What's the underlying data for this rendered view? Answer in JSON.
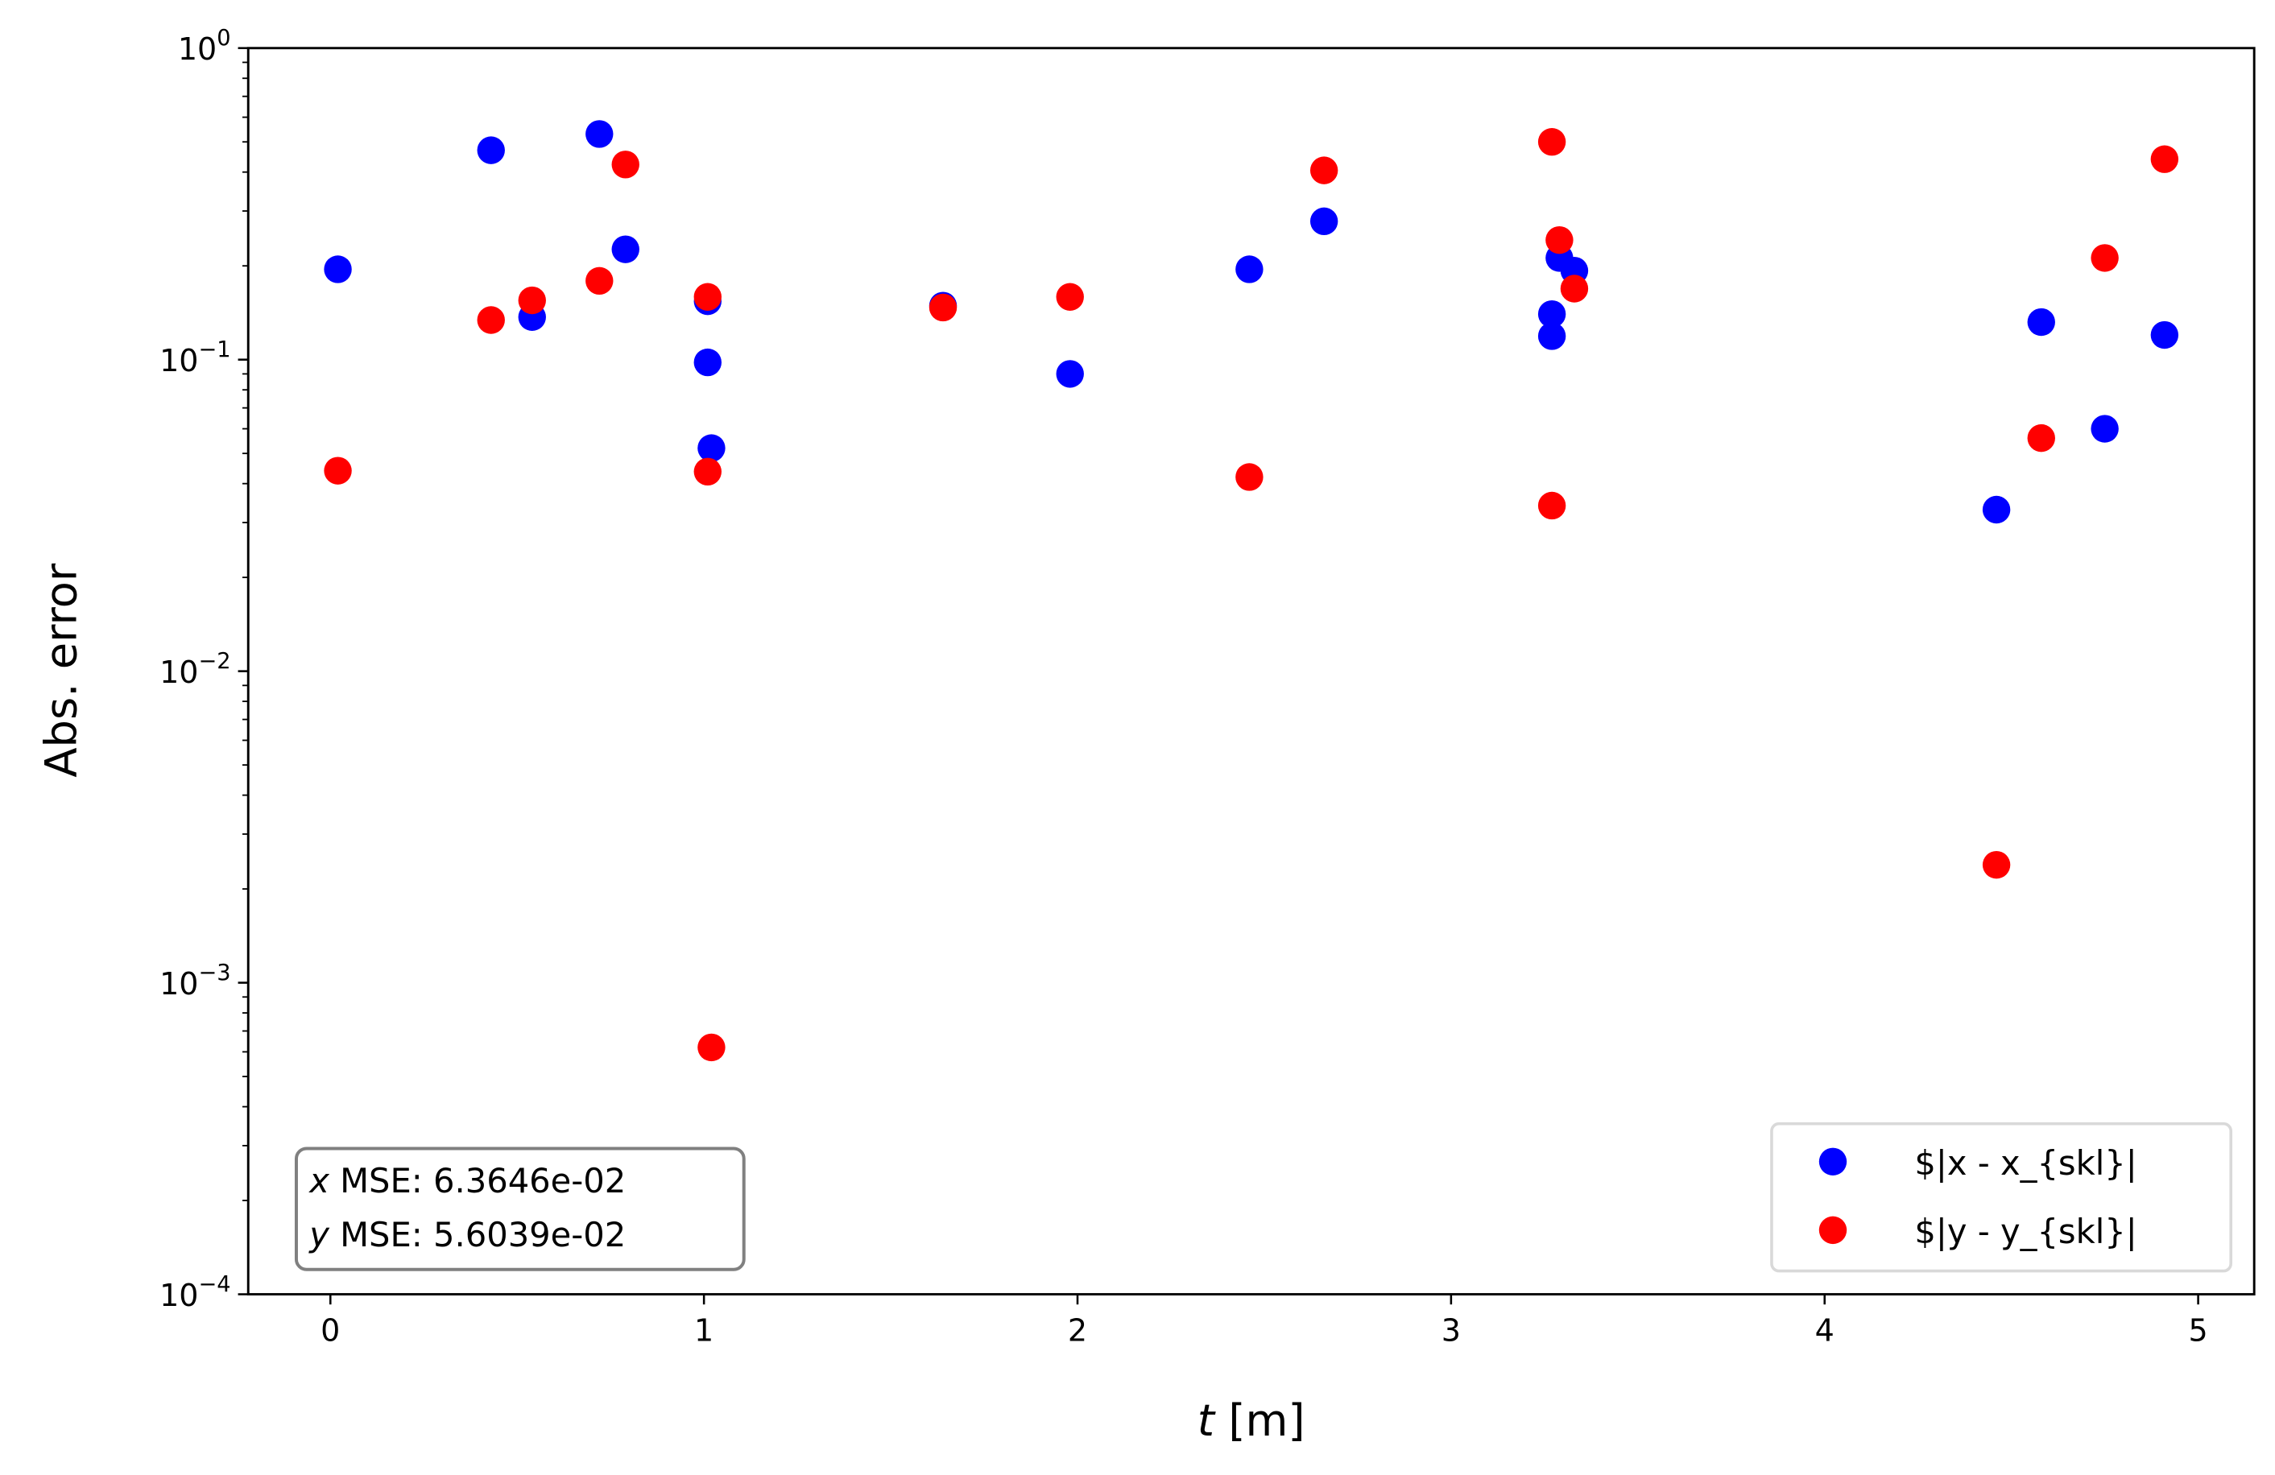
{
  "chart_data": {
    "type": "scatter",
    "title": "",
    "xlabel_var": "t",
    "xlabel_unit": " [m]",
    "ylabel": "Abs. error",
    "xlim": [
      -0.22,
      5.15
    ],
    "ylim": [
      0.0001,
      1
    ],
    "yscale": "log",
    "grid": false,
    "xticks": [
      0,
      1,
      2,
      3,
      4,
      5
    ],
    "xtick_labels": [
      "0",
      "1",
      "2",
      "3",
      "4",
      "5"
    ],
    "yticks": [
      -4,
      -3,
      -2,
      -1,
      0
    ],
    "ytick_labels": [
      {
        "base": "10",
        "exp": "−4"
      },
      {
        "base": "10",
        "exp": "−3"
      },
      {
        "base": "10",
        "exp": "−2"
      },
      {
        "base": "10",
        "exp": "−1"
      },
      {
        "base": "10",
        "exp": "0"
      }
    ],
    "legend_placement": "lower-right",
    "series": [
      {
        "name": "$|x - x_{skl}|",
        "color": "#0000ff",
        "x": [
          0.02,
          0.43,
          0.54,
          0.72,
          0.79,
          1.01,
          1.01,
          1.02,
          1.64,
          1.98,
          2.46,
          2.66,
          3.29,
          3.33,
          3.27,
          3.27,
          4.46,
          4.58,
          4.75,
          4.91
        ],
        "y": [
          0.195,
          0.47,
          0.137,
          0.53,
          0.226,
          0.154,
          0.098,
          0.052,
          0.149,
          0.09,
          0.195,
          0.278,
          0.212,
          0.193,
          0.14,
          0.119,
          0.033,
          0.132,
          0.06,
          0.12
        ]
      },
      {
        "name": "$|y - y_{skl}|",
        "color": "#ff0000",
        "x": [
          0.02,
          0.43,
          0.54,
          0.72,
          0.79,
          1.01,
          1.01,
          1.02,
          1.64,
          1.98,
          2.46,
          2.66,
          3.27,
          3.29,
          3.33,
          3.27,
          4.46,
          4.58,
          4.75,
          4.91
        ],
        "y": [
          0.044,
          0.134,
          0.155,
          0.179,
          0.423,
          0.159,
          0.0437,
          0.00062,
          0.147,
          0.159,
          0.042,
          0.405,
          0.5,
          0.242,
          0.169,
          0.034,
          0.00239,
          0.056,
          0.212,
          0.44
        ]
      }
    ],
    "annotation": {
      "lines": [
        {
          "var": "x",
          "text": " MSE: 6.3646e-02"
        },
        {
          "var": "y",
          "text": " MSE: 5.6039e-02"
        }
      ]
    }
  }
}
